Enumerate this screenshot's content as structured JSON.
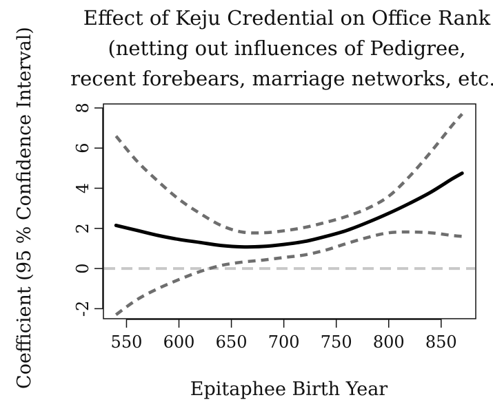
{
  "chart_data": {
    "type": "line",
    "title_lines": [
      "Effect of Keju Credential on Office Rank",
      "(netting out influences of Pedigree,",
      "recent forebears, marriage networks, etc.)"
    ],
    "xlabel": "Epitaphee Birth Year",
    "ylabel": "Coefficient (95 % Confidence Interval)",
    "xlim": [
      528,
      883
    ],
    "ylim": [
      -2.5,
      8.2
    ],
    "x_ticks": [
      550,
      600,
      650,
      700,
      750,
      800,
      850
    ],
    "y_ticks": [
      -2,
      0,
      2,
      4,
      6,
      8
    ],
    "grid": false,
    "reference_line": {
      "y": 0,
      "color": "#c8c8c8",
      "style": "dashed"
    },
    "series": [
      {
        "role": "estimate",
        "color": "#000000",
        "style": "solid",
        "x": [
          540,
          560,
          580,
          600,
          620,
          640,
          660,
          680,
          700,
          720,
          740,
          760,
          780,
          800,
          820,
          840,
          860,
          870
        ],
        "y": [
          2.15,
          1.9,
          1.65,
          1.45,
          1.3,
          1.15,
          1.08,
          1.1,
          1.2,
          1.35,
          1.6,
          1.9,
          2.3,
          2.75,
          3.25,
          3.8,
          4.45,
          4.75
        ]
      },
      {
        "role": "upper bound",
        "color": "#6e6e6e",
        "style": "dashed",
        "x": [
          540,
          560,
          580,
          600,
          620,
          640,
          660,
          680,
          700,
          720,
          740,
          760,
          780,
          800,
          820,
          840,
          860,
          870
        ],
        "y": [
          6.6,
          5.35,
          4.35,
          3.45,
          2.75,
          2.15,
          1.82,
          1.78,
          1.88,
          2.05,
          2.3,
          2.6,
          3.0,
          3.6,
          4.6,
          5.8,
          7.1,
          7.7
        ]
      },
      {
        "role": "lower bound",
        "color": "#6e6e6e",
        "style": "dashed",
        "x": [
          540,
          560,
          580,
          600,
          620,
          640,
          660,
          680,
          700,
          720,
          740,
          760,
          780,
          800,
          820,
          840,
          860,
          870
        ],
        "y": [
          -2.3,
          -1.55,
          -1.0,
          -0.55,
          -0.15,
          0.15,
          0.32,
          0.42,
          0.55,
          0.68,
          0.92,
          1.25,
          1.55,
          1.78,
          1.82,
          1.78,
          1.65,
          1.6
        ]
      }
    ]
  }
}
